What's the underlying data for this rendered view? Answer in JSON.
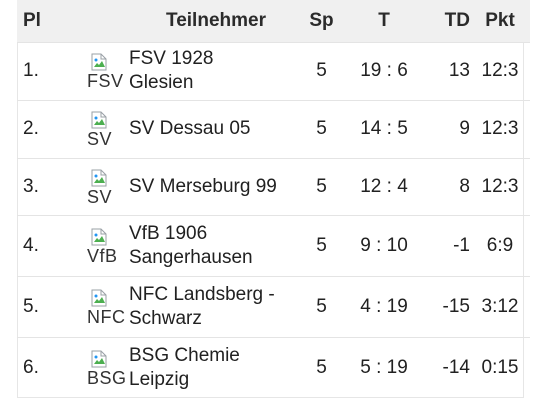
{
  "table": {
    "headers": {
      "place": "Pl",
      "participant": "Teilnehmer",
      "games": "Sp",
      "goals": "T",
      "goal_diff": "TD",
      "points": "Pkt"
    },
    "rows": [
      {
        "place": "1.",
        "logo_alt": "FSV",
        "name_line1": "FSV 1928",
        "name_line2": "Glesien",
        "games": "5",
        "goals": "19 : 6",
        "goal_diff": "13",
        "points": "12:3"
      },
      {
        "place": "2.",
        "logo_alt": "SV",
        "name_line1": "SV Dessau 05",
        "name_line2": "",
        "games": "5",
        "goals": "14 : 5",
        "goal_diff": "9",
        "points": "12:3"
      },
      {
        "place": "3.",
        "logo_alt": "SV",
        "name_line1": "SV Merseburg 99",
        "name_line2": "",
        "games": "5",
        "goals": "12 : 4",
        "goal_diff": "8",
        "points": "12:3"
      },
      {
        "place": "4.",
        "logo_alt": "VfB",
        "name_line1": "VfB 1906",
        "name_line2": "Sangerhausen",
        "games": "5",
        "goals": "9 : 10",
        "goal_diff": "-1",
        "points": "6:9"
      },
      {
        "place": "5.",
        "logo_alt": "NFC",
        "name_line1": "NFC Landsberg -",
        "name_line2": "Schwarz",
        "games": "5",
        "goals": "4 : 19",
        "goal_diff": "-15",
        "points": "3:12"
      },
      {
        "place": "6.",
        "logo_alt": "BSG",
        "name_line1": "BSG Chemie",
        "name_line2": "Leipzig",
        "games": "5",
        "goals": "5 : 19",
        "goal_diff": "-14",
        "points": "0:15"
      }
    ]
  },
  "icons": {
    "team_logo": "broken-image-icon"
  },
  "colors": {
    "header_bg": "#f0f0f0",
    "text": "#212121",
    "row_border": "#e4e4e4"
  }
}
